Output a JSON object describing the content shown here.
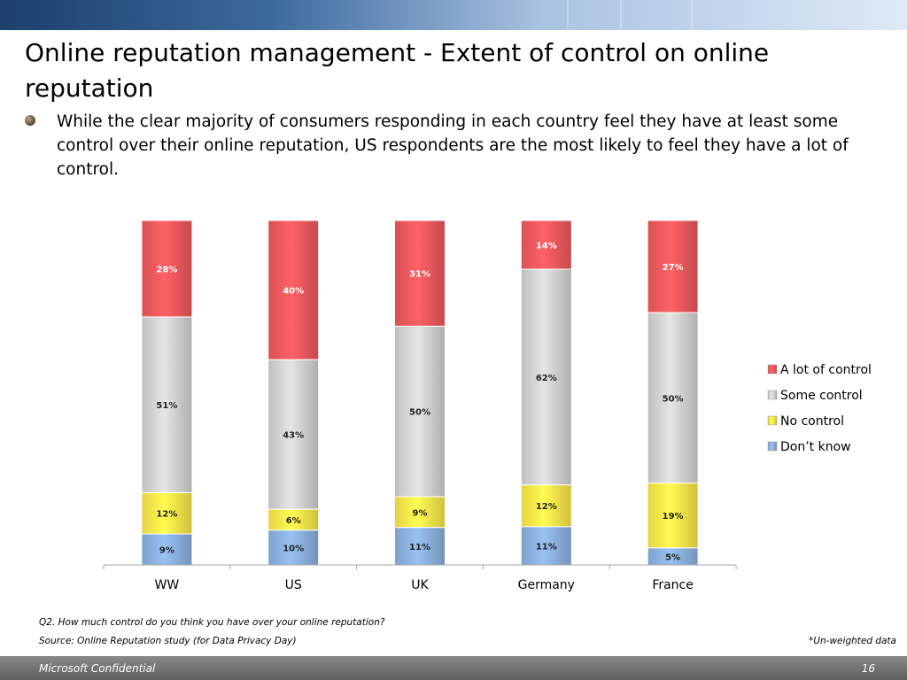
{
  "slide": {
    "title": "Online reputation management - Extent of control on online reputation",
    "bullet": "While the clear majority of consumers responding in each country feel they have at least some control over their online reputation, US respondents are the most likely to feel they have a lot of control.",
    "footnote_question": "Q2. How much control do you think you have over your online reputation?",
    "footnote_source": "Source: Online Reputation study (for Data Privacy Day)",
    "footnote_unweighted": "*Un-weighted data",
    "footer_left": "Microsoft Confidential",
    "footer_page": "16"
  },
  "chart_data": {
    "type": "bar",
    "stacked": true,
    "percent_stacked": true,
    "categories": [
      "WW",
      "US",
      "UK",
      "Germany",
      "France"
    ],
    "series": [
      {
        "name": "Don’t know",
        "values": [
          9,
          10,
          11,
          11,
          5
        ],
        "labels": [
          "9%",
          "10%",
          "11%",
          "11%",
          "5%"
        ],
        "color": "#8db3e2"
      },
      {
        "name": "No control",
        "values": [
          12,
          6,
          9,
          12,
          19
        ],
        "labels": [
          "12%",
          "6%",
          "9%",
          "12%",
          "19%"
        ],
        "color": "#ffe94a"
      },
      {
        "name": "Some control",
        "values": [
          51,
          43,
          50,
          62,
          50
        ],
        "labels": [
          "51%",
          "43%",
          "50%",
          "62%",
          "50%"
        ],
        "color": "#d4d4d4"
      },
      {
        "name": "A lot of control",
        "values": [
          28,
          40,
          31,
          14,
          27
        ],
        "labels": [
          "28%",
          "40%",
          "31%",
          "14%",
          "27%"
        ],
        "color": "#f05a5e"
      }
    ],
    "legend_order": [
      "A lot of control",
      "Some control",
      "No control",
      "Don’t know"
    ],
    "legend_position": "right",
    "ylim": [
      0,
      100
    ],
    "grid": false
  }
}
